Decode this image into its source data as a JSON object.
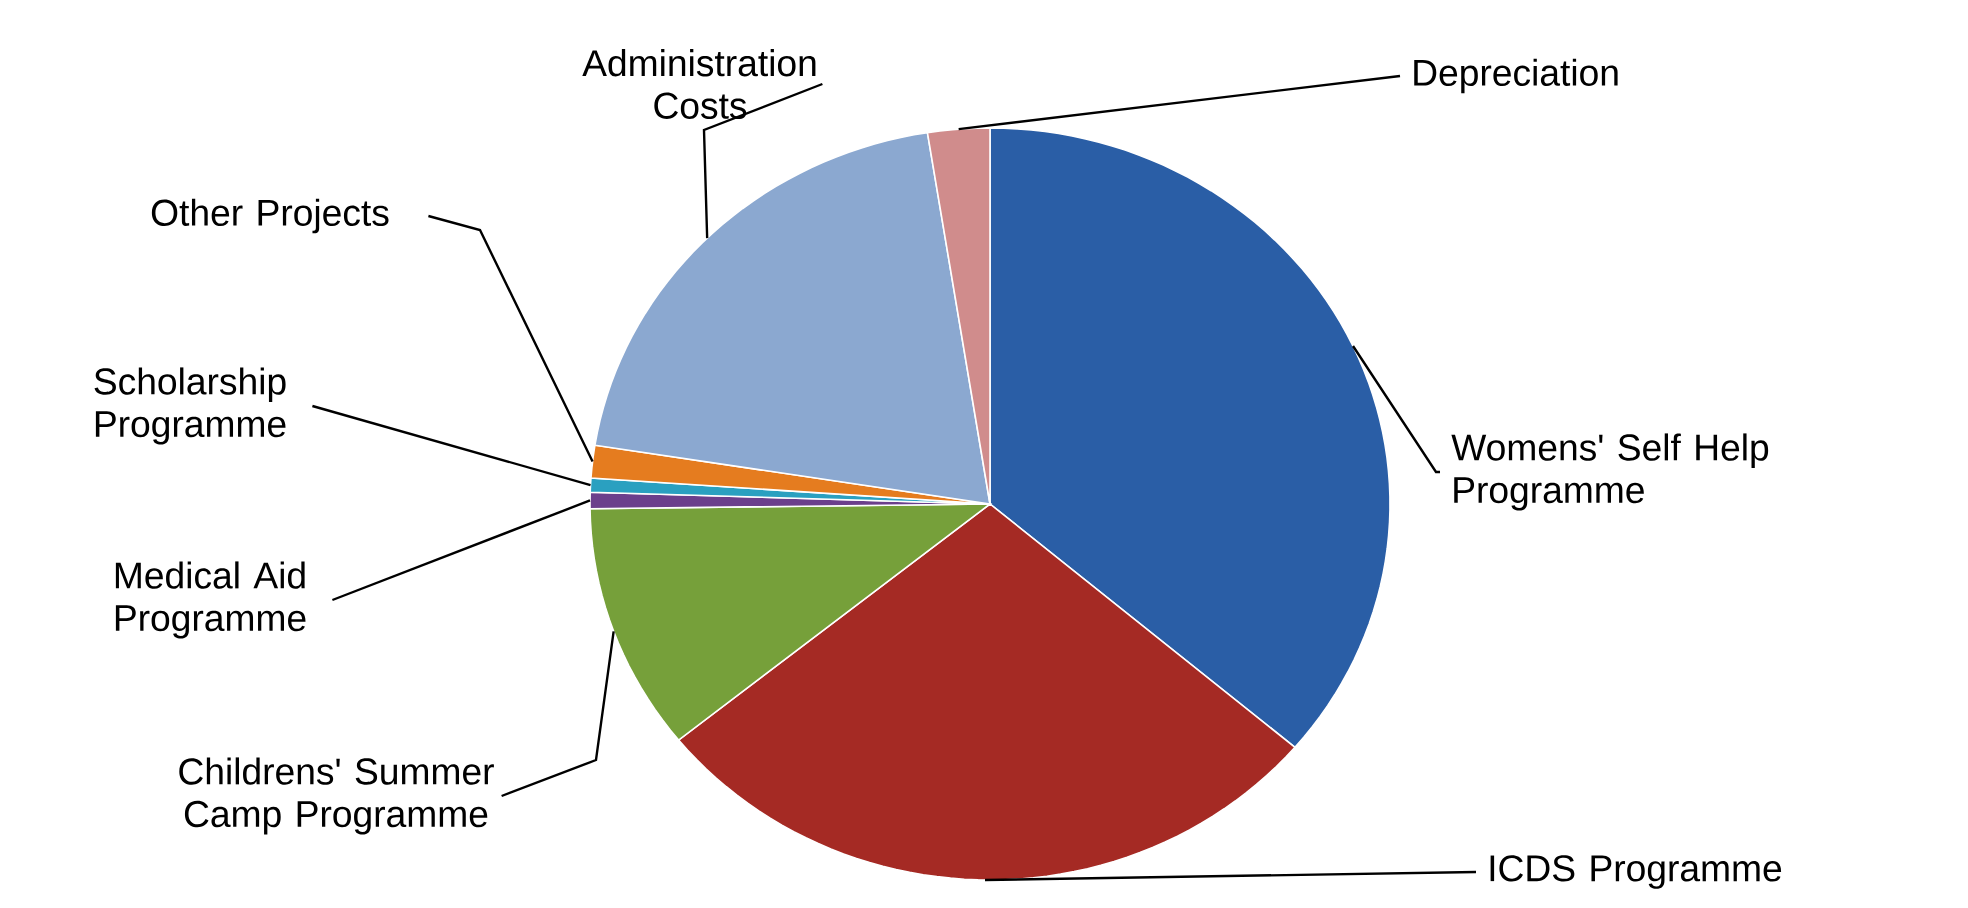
{
  "chart_data": {
    "type": "pie",
    "categories": [
      "Womens' Self Help Programme",
      "ICDS Programme",
      "Childrens' Summer Camp Programme",
      "Medical Aid Programme",
      "Scholarship Programme",
      "Other Projects",
      "Administration Costs",
      "Depreciation"
    ],
    "values": [
      36.2,
      28,
      10.6,
      0.7,
      0.6,
      1.4,
      20,
      2.5
    ],
    "colors": [
      "#2a5ea6",
      "#a52a24",
      "#76a03a",
      "#6b3f8c",
      "#2aa0c0",
      "#e57c1f",
      "#8ba8d0",
      "#d08c8c"
    ]
  }
}
